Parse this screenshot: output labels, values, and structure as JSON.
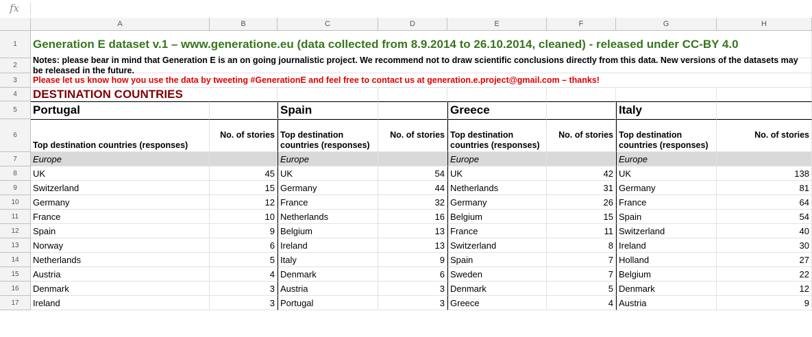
{
  "formula_bar": {
    "fx_label": "fx",
    "value": ""
  },
  "columns": [
    "A",
    "B",
    "C",
    "D",
    "E",
    "F",
    "G",
    "H"
  ],
  "row_numbers": [
    "1",
    "2",
    "3",
    "4",
    "5",
    "6",
    "7",
    "8",
    "9",
    "10",
    "11",
    "12",
    "13",
    "14",
    "15",
    "16",
    "17"
  ],
  "title": "Generation E dataset v.1 – www.generatione.eu (data collected from 8.9.2014 to 26.10.2014, cleaned) - released under CC-BY 4.0",
  "notes": "Notes: please bear in mind that Generation E is an on going journalistic project. We recommend not to draw scientific conclusions directly from this data. New versions of the datasets may be released in the future.",
  "contact": "Please let us know how you use the data by tweeting #GenerationE and feel free to contact us at generation.e.project@gmail.com – thanks!",
  "section": "DESTINATION COUNTRIES",
  "region": "Europe",
  "groups": [
    {
      "name": "Portugal",
      "dest_header": "Top destination countries (responses)",
      "stories_header": "No. of stories",
      "rows": [
        [
          "UK",
          "45"
        ],
        [
          "Switzerland",
          "15"
        ],
        [
          "Germany",
          "12"
        ],
        [
          "France",
          "10"
        ],
        [
          "Spain",
          "9"
        ],
        [
          "Norway",
          "6"
        ],
        [
          "Netherlands",
          "5"
        ],
        [
          "Austria",
          "4"
        ],
        [
          "Denmark",
          "3"
        ],
        [
          "Ireland",
          "3"
        ]
      ]
    },
    {
      "name": "Spain",
      "dest_header": "Top destination countries (responses)",
      "stories_header": "No. of stories",
      "rows": [
        [
          "UK",
          "54"
        ],
        [
          "Germany",
          "44"
        ],
        [
          "France",
          "32"
        ],
        [
          "Netherlands",
          "16"
        ],
        [
          "Belgium",
          "13"
        ],
        [
          "Ireland",
          "13"
        ],
        [
          "Italy",
          "9"
        ],
        [
          "Denmark",
          "6"
        ],
        [
          "Austria",
          "3"
        ],
        [
          "Portugal",
          "3"
        ]
      ]
    },
    {
      "name": "Greece",
      "dest_header": "Top destination countries (responses)",
      "stories_header": "No. of stories",
      "rows": [
        [
          "UK",
          "42"
        ],
        [
          "Netherlands",
          "31"
        ],
        [
          "Germany",
          "26"
        ],
        [
          "Belgium",
          "15"
        ],
        [
          "France",
          "11"
        ],
        [
          "Switzerland",
          "8"
        ],
        [
          "Spain",
          "7"
        ],
        [
          "Sweden",
          "7"
        ],
        [
          "Denmark",
          "5"
        ],
        [
          "Greece",
          "4"
        ]
      ]
    },
    {
      "name": "Italy",
      "dest_header": "Top destination countries (responses)",
      "stories_header": "No. of stories",
      "rows": [
        [
          "UK",
          "138"
        ],
        [
          "Germany",
          "81"
        ],
        [
          "France",
          "64"
        ],
        [
          "Spain",
          "54"
        ],
        [
          "Switzerland",
          "40"
        ],
        [
          "Ireland",
          "30"
        ],
        [
          "Holland",
          "27"
        ],
        [
          "Belgium",
          "22"
        ],
        [
          "Denmark",
          "12"
        ],
        [
          "Austria",
          "9"
        ]
      ]
    }
  ]
}
